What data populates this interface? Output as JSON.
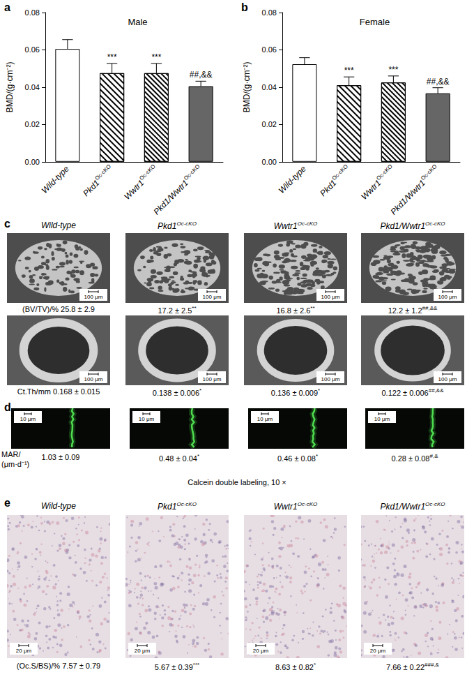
{
  "chart_data": [
    {
      "type": "bar",
      "panel_label": "a",
      "title": "Male",
      "y_label": "BMD/(g·cm⁻²)",
      "categories": [
        "Wild-type",
        "Pkd1Oc-cKO",
        "Wwtr1Oc-cKO",
        "Pkd1/Wwtr1Oc-cKO"
      ],
      "values": [
        0.0605,
        0.0475,
        0.0475,
        0.0405
      ],
      "errors": [
        0.005,
        0.0052,
        0.0052,
        0.0027
      ],
      "annotations": [
        null,
        "***",
        "***",
        "##,&&"
      ],
      "colors": [
        "#ffffff",
        "#ffffff",
        "#ffffff",
        "#666666"
      ],
      "ylim": [
        0,
        0.08
      ],
      "yticks": [
        {
          "value": 0,
          "label": "0.00"
        },
        0.02,
        0.04,
        0.06,
        0.08
      ],
      "grid": false
    },
    {
      "type": "bar",
      "panel_label": "b",
      "title": "Female",
      "y_label": "BMD/(g·cm⁻²)",
      "categories": [
        "Wild-type",
        "Pkd1Oc-cKO",
        "Wwtr1Oc-cKO",
        "Pkd1/Wwtr1Oc-cKO"
      ],
      "values": [
        0.0523,
        0.041,
        0.0425,
        0.0367
      ],
      "errors": [
        0.0035,
        0.0045,
        0.0035,
        0.003
      ],
      "annotations": [
        null,
        "***",
        "***",
        "##,&&"
      ],
      "colors": [
        "#ffffff",
        "#ffffff",
        "#ffffff",
        "#666666"
      ],
      "ylim": [
        0,
        0.08
      ],
      "yticks": [
        {
          "value": 0,
          "label": "0.00"
        },
        0.02,
        0.04,
        0.06,
        0.08
      ],
      "grid": false
    }
  ],
  "panels": {
    "c": {
      "label": "c",
      "columns": [
        "Wild-type",
        "Pkd1Oc-cKO",
        "Wwtr1Oc-cKO",
        "Pkd1/Wwtr1Oc-cKO"
      ],
      "rows": [
        {
          "scale_bar": "100 μm",
          "values": [
            "(BV/TV)/% 25.8 ± 2.9",
            "17.2 ± 2.5**",
            "16.8 ± 2.6**",
            "12.2 ± 1.2##,&&"
          ]
        },
        {
          "scale_bar": "100 μm",
          "values": [
            "Ct.Th/mm 0.168 ± 0.015",
            "0.138 ± 0.006*",
            "0.136 ± 0.009*",
            "0.122 ± 0.006##,&&"
          ]
        }
      ]
    },
    "d": {
      "label": "d",
      "scale_bar": "10 μm",
      "row_label": [
        "MAR/",
        "(μm·d⁻¹)"
      ],
      "values": [
        "1.03 ± 0.09",
        "0.48 ± 0.04*",
        "0.46 ± 0.08*",
        "0.28 ± 0.08#,&"
      ],
      "caption": "Calcein double labeling, 10 ×"
    },
    "e": {
      "label": "e",
      "columns": [
        "Wild-type",
        "Pkd1Oc-cKO",
        "Wwtr1Oc-cKO",
        "Pkd1/Wwtr1Oc-cKO"
      ],
      "scale_bar": "20 μm",
      "values": [
        "(Oc.S/BS)/% 7.57 ± 0.79",
        "5.67 ± 0.39***",
        "8.63 ± 0.82*",
        "7.66 ± 0.22###,&"
      ]
    }
  }
}
